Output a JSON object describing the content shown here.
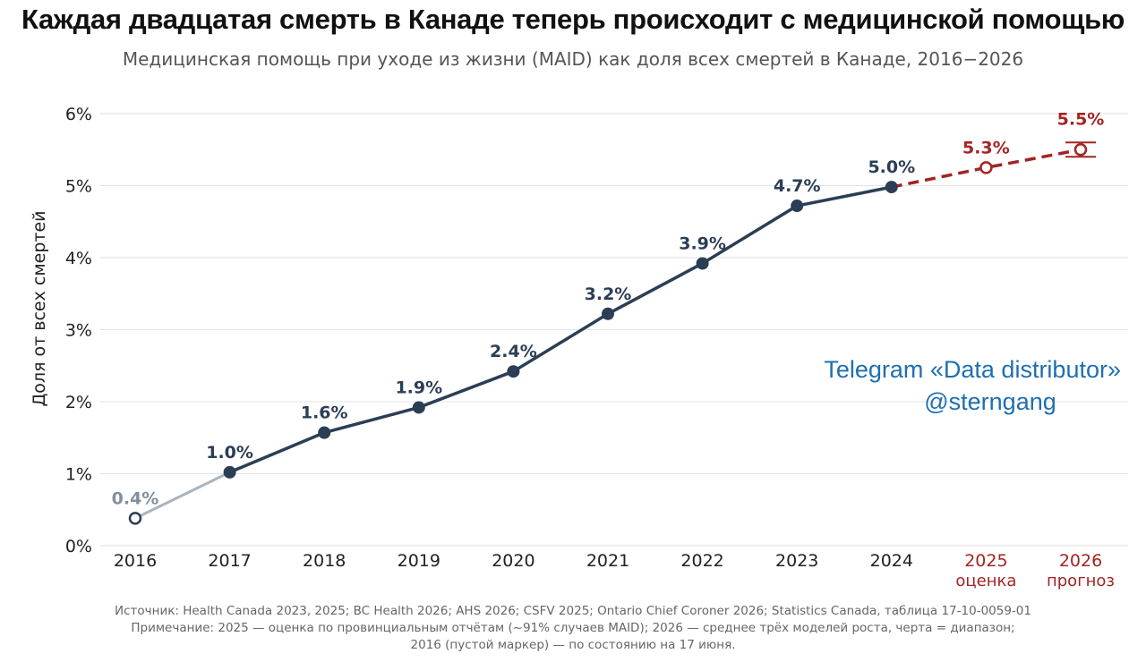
{
  "title": "Каждая двадцатая смерть в Канаде теперь происходит с медицинской помощью",
  "subtitle": "Медицинская помощь при уходе из жизни (MAID) как доля всех смертей в Канаде, 2016−2026",
  "watermark": {
    "line1": "Telegram «Data distributor»",
    "line2": "@sterngang",
    "color": "#1f6fb0"
  },
  "footnotes": [
    "Источник: Health Canada 2023, 2025; BC Health 2026; AHS 2026; CSFV 2025; Ontario Chief Coroner 2026; Statistics Canada, таблица 17-10-0059-01",
    "Примечание: 2025 — оценка по провинциальным отчётам (~91% случаев MAID); 2026 — среднее трёх моделей роста, черта = диапазон;",
    "2016 (пустой маркер) — по состоянию на 17 июня."
  ],
  "chart_data": {
    "type": "line",
    "title": "Каждая двадцатая смерть в Канаде теперь происходит с медицинской помощью",
    "subtitle": "Медицинская помощь при уходе из жизни (MAID) как доля всех смертей в Канаде, 2016−2026",
    "ylabel": "Доля от всех смертей",
    "xlabel": "",
    "ylim": [
      0,
      6
    ],
    "yticks": [
      0,
      1,
      2,
      3,
      4,
      5,
      6
    ],
    "ytick_labels": [
      "0%",
      "1%",
      "2%",
      "3%",
      "4%",
      "5%",
      "6%"
    ],
    "grid": true,
    "colors": {
      "main": "#2b3e55",
      "partial": "#aab4c0",
      "forecast": "#a32424",
      "partial_label": "#8090a0"
    },
    "x": [
      "2016",
      "2017",
      "2018",
      "2019",
      "2020",
      "2021",
      "2022",
      "2023",
      "2024",
      "2025",
      "2026"
    ],
    "x_sublabels": [
      "",
      "",
      "",
      "",
      "",
      "",
      "",
      "",
      "",
      "оценка",
      "прогноз"
    ],
    "values": [
      0.38,
      1.02,
      1.57,
      1.92,
      2.42,
      3.22,
      3.92,
      4.72,
      4.98,
      5.25,
      5.5
    ],
    "labels": [
      "0.4%",
      "1.0%",
      "1.6%",
      "1.9%",
      "2.4%",
      "3.2%",
      "3.9%",
      "4.7%",
      "5.0%",
      "5.3%",
      "5.5%"
    ],
    "point_kind": [
      "partial",
      "actual",
      "actual",
      "actual",
      "actual",
      "actual",
      "actual",
      "actual",
      "actual",
      "estimate",
      "forecast"
    ],
    "range_2026": [
      5.4,
      5.6
    ]
  }
}
